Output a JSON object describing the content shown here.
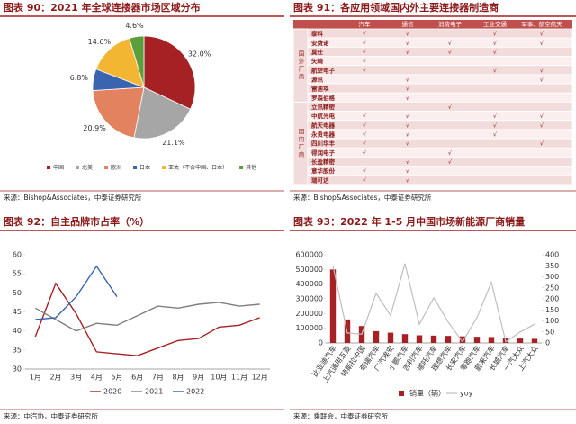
{
  "chart_data": [
    {
      "type": "pie",
      "title": "图表 90：2021 年全球连接器市场区域分布",
      "source": "来源：Bishop&Associates，中泰证券研究所",
      "categories": [
        "中国",
        "北美",
        "欧洲",
        "日本",
        "亚太（不含中国、日本）",
        "其他"
      ],
      "values": [
        32.0,
        21.1,
        20.9,
        6.8,
        14.6,
        4.6
      ],
      "value_labels": [
        "32.0%",
        "21.1%",
        "20.9%",
        "6.8%",
        "14.6%",
        "4.6%"
      ],
      "colors": [
        "#a52124",
        "#a6a6a6",
        "#e2825e",
        "#3a64b0",
        "#f2b632",
        "#5c9e3d"
      ]
    },
    {
      "type": "line",
      "title": "图表 92：自主品牌市占率（%）",
      "source": "来源：中汽协，中泰证券研究所",
      "categories": [
        "1月",
        "2月",
        "3月",
        "4月",
        "5月",
        "6月",
        "7月",
        "8月",
        "9月",
        "10月",
        "11月",
        "12月"
      ],
      "ylim": [
        30,
        60
      ],
      "yticks": [
        30,
        35,
        40,
        45,
        50,
        55,
        60
      ],
      "grid": false,
      "legend": "bottom",
      "series": [
        {
          "name": "2020",
          "color": "#a52124",
          "values": [
            38.5,
            52.5,
            44.5,
            34.5,
            34,
            33.5,
            35.5,
            37.5,
            38,
            41,
            41.5,
            43.5
          ]
        },
        {
          "name": "2021",
          "color": "#7f7f7f",
          "values": [
            46,
            43,
            40,
            42,
            41.5,
            44,
            46.5,
            46,
            47,
            47.5,
            46.5,
            47
          ]
        },
        {
          "name": "2022",
          "color": "#3a64b0",
          "values": [
            43,
            43.5,
            49,
            57,
            49,
            null,
            null,
            null,
            null,
            null,
            null,
            null
          ]
        }
      ]
    },
    {
      "type": "bar",
      "title": "图表 93：2022 年 1-5 月中国市场新能源厂商销量",
      "source": "来源：乘联会，中泰证券研究所",
      "categories": [
        "比亚迪汽车",
        "上汽通用五菱",
        "特斯拉中国",
        "奇瑞汽车",
        "广汽埃安",
        "小鹏汽车",
        "吉利汽车",
        "哪吒汽车",
        "理想汽车",
        "长安汽车",
        "零跑汽车",
        "蔚来汽车",
        "长城汽车",
        "一汽大众",
        "上汽大众"
      ],
      "ylim": [
        0,
        600000
      ],
      "yticks": [
        0,
        100000,
        200000,
        300000,
        400000,
        500000,
        600000
      ],
      "y2lim": [
        0,
        400
      ],
      "y2ticks": [
        0,
        50,
        100,
        150,
        200,
        250,
        300,
        350,
        400
      ],
      "grid": false,
      "legend": "bottom",
      "series": [
        {
          "name": "销量（辆）",
          "color": "#a52124",
          "values": [
            500000,
            160000,
            115000,
            80000,
            70000,
            60000,
            52000,
            50000,
            48000,
            45000,
            42000,
            40000,
            35000,
            30000,
            28000
          ]
        },
        {
          "name": "yoy",
          "color": "#bfbfbf",
          "type": "line",
          "axis": "y2",
          "values": [
            350,
            45,
            40,
            225,
            125,
            360,
            85,
            205,
            95,
            5,
            115,
            275,
            5,
            50,
            85
          ]
        }
      ]
    }
  ],
  "table": {
    "title": "图表 91：各应用领域国内外主要连接器制造商",
    "source": "来源：Bishop&Associates，中泰证券研究所",
    "columns": [
      "汽车",
      "通信",
      "消费电子",
      "工业交通",
      "军事、航空航天"
    ],
    "groups": [
      {
        "name": "国外厂商",
        "rows": [
          {
            "name": "泰科",
            "cells": [
              "√",
              "√",
              null,
              "√",
              "√"
            ]
          },
          {
            "name": "安费诺",
            "cells": [
              "√",
              "√",
              "√",
              "√",
              "√"
            ]
          },
          {
            "name": "莫仕",
            "cells": [
              "√",
              "√",
              "√",
              "√",
              null
            ]
          },
          {
            "name": "矢崎",
            "cells": [
              "√",
              null,
              null,
              null,
              null
            ]
          },
          {
            "name": "航空电子",
            "cells": [
              "√",
              null,
              null,
              "√",
              "√"
            ]
          },
          {
            "name": "源讯",
            "cells": [
              null,
              "√",
              null,
              null,
              "√"
            ]
          },
          {
            "name": "雷迪埃",
            "cells": [
              null,
              "√",
              null,
              null,
              null
            ]
          },
          {
            "name": "罗森伯格",
            "cells": [
              null,
              "√",
              null,
              null,
              null
            ]
          }
        ]
      },
      {
        "name": "国内厂商",
        "rows": [
          {
            "name": "立讯精密",
            "cells": [
              null,
              null,
              "√",
              null,
              null
            ]
          },
          {
            "name": "中航光电",
            "cells": [
              "√",
              "√",
              null,
              "√",
              "√"
            ]
          },
          {
            "name": "航天电器",
            "cells": [
              "√",
              "√",
              null,
              "√",
              "√"
            ]
          },
          {
            "name": "永贵电器",
            "cells": [
              "√",
              "√",
              null,
              "√",
              null
            ]
          },
          {
            "name": "四川华丰",
            "cells": [
              "√",
              "√",
              null,
              null,
              "√"
            ]
          },
          {
            "name": "得润电子",
            "cells": [
              "√",
              null,
              "√",
              null,
              null
            ]
          },
          {
            "name": "长盈精密",
            "cells": [
              null,
              "√",
              "√",
              null,
              null
            ]
          },
          {
            "name": "意华股份",
            "cells": [
              "√",
              "√",
              null,
              null,
              null
            ]
          },
          {
            "name": "瑞可达",
            "cells": [
              "√",
              "√",
              null,
              null,
              null
            ]
          }
        ]
      }
    ]
  }
}
